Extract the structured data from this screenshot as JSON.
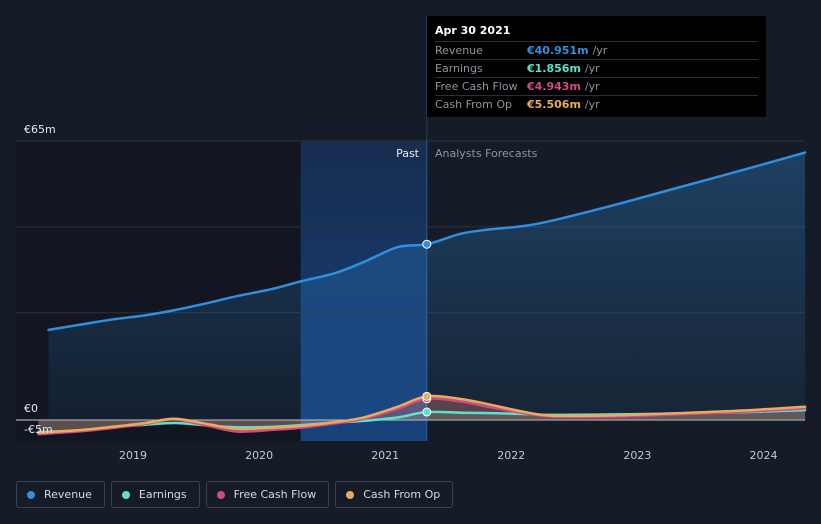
{
  "chart_data": {
    "type": "line",
    "y_top_label": "€65m",
    "y_zero_label": "€0",
    "y_bottom_label": "-€5m",
    "ylim": [
      -5,
      65
    ],
    "x_ticks": [
      2019,
      2020,
      2021,
      2022,
      2023,
      2024
    ],
    "x_range": [
      2018.25,
      2024.33
    ],
    "divider_x": 2021.33,
    "highlight_start_x": 2020.33,
    "past_label": "Past",
    "forecast_label": "Analysts Forecasts",
    "series": [
      {
        "name": "Revenue",
        "color": "#2f8fe0",
        "fill": true,
        "x": [
          2018.33,
          2018.6,
          2018.83,
          2019.1,
          2019.33,
          2019.6,
          2019.83,
          2020.1,
          2020.33,
          2020.6,
          2020.83,
          2021.1,
          2021.33,
          2021.6,
          2021.83,
          2022.1,
          2022.33,
          2022.83,
          2023.33,
          2023.83,
          2024.33
        ],
        "y": [
          21,
          22.3,
          23.4,
          24.4,
          25.6,
          27.3,
          28.9,
          30.5,
          32.3,
          34.2,
          36.8,
          40.3,
          40.95,
          43.4,
          44.4,
          45.2,
          46.5,
          50.2,
          54.2,
          58.2,
          62.3
        ]
      },
      {
        "name": "Earnings",
        "color": "#5ee0cc",
        "fill": false,
        "x": [
          2018.25,
          2018.6,
          2018.83,
          2019.1,
          2019.33,
          2019.6,
          2019.83,
          2020.1,
          2020.33,
          2020.6,
          2020.83,
          2021.1,
          2021.33,
          2021.6,
          2021.83,
          2022.1,
          2022.33,
          2022.83,
          2023.33,
          2023.83,
          2024.33
        ],
        "y": [
          -2.8,
          -2.4,
          -1.7,
          -1.1,
          -0.7,
          -1.3,
          -1.7,
          -1.6,
          -1.2,
          -0.6,
          -0.2,
          0.6,
          1.856,
          1.7,
          1.6,
          1.4,
          1.2,
          1.3,
          1.5,
          1.8,
          2.3
        ]
      },
      {
        "name": "Free Cash Flow",
        "color": "#d04a86",
        "fill": false,
        "x": [
          2018.25,
          2018.6,
          2018.83,
          2019.1,
          2019.33,
          2019.6,
          2019.83,
          2020.1,
          2020.33,
          2020.6,
          2020.83,
          2021.1,
          2021.33,
          2021.6,
          2021.83,
          2022.1,
          2022.33,
          2022.83,
          2023.33,
          2023.83,
          2024.33
        ],
        "y": [
          -3.3,
          -2.6,
          -1.9,
          -0.9,
          0.1,
          -1.4,
          -2.7,
          -2.3,
          -1.8,
          -0.8,
          0.3,
          2.6,
          4.943,
          4.3,
          3.0,
          1.6,
          0.8,
          0.8,
          1.3,
          1.9,
          2.7
        ]
      },
      {
        "name": "Cash From Op",
        "color": "#e8ad5c",
        "fill": false,
        "x": [
          2018.25,
          2018.6,
          2018.83,
          2019.1,
          2019.33,
          2019.6,
          2019.83,
          2020.1,
          2020.33,
          2020.6,
          2020.83,
          2021.1,
          2021.33,
          2021.6,
          2021.83,
          2022.1,
          2022.33,
          2022.83,
          2023.33,
          2023.83,
          2024.33
        ],
        "y": [
          -3.0,
          -2.3,
          -1.6,
          -0.7,
          0.3,
          -1.0,
          -2.1,
          -1.8,
          -1.4,
          -0.5,
          0.6,
          3.1,
          5.506,
          4.9,
          3.6,
          1.9,
          1.0,
          1.1,
          1.6,
          2.2,
          3.1
        ]
      }
    ]
  },
  "tooltip": {
    "date": "Apr 30 2021",
    "rows": [
      {
        "label": "Revenue",
        "value": "€40.951m",
        "unit": "/yr",
        "color": "#2f8fe0"
      },
      {
        "label": "Earnings",
        "value": "€1.856m",
        "unit": "/yr",
        "color": "#5ee0cc"
      },
      {
        "label": "Free Cash Flow",
        "value": "€4.943m",
        "unit": "/yr",
        "color": "#d04a86"
      },
      {
        "label": "Cash From Op",
        "value": "€5.506m",
        "unit": "/yr",
        "color": "#e8ad5c"
      }
    ]
  },
  "legend": [
    {
      "label": "Revenue",
      "color": "#2f8fe0"
    },
    {
      "label": "Earnings",
      "color": "#5ee0cc"
    },
    {
      "label": "Free Cash Flow",
      "color": "#d04a86"
    },
    {
      "label": "Cash From Op",
      "color": "#e8ad5c"
    }
  ]
}
